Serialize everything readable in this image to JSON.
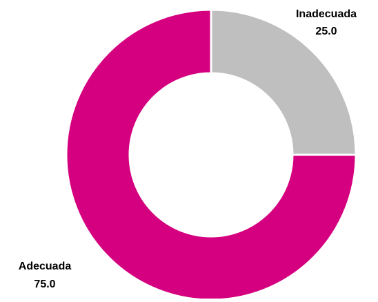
{
  "chart_data": {
    "type": "pie",
    "donut": true,
    "title": "",
    "slices": [
      {
        "label": "Inadecuada",
        "value": 25.0,
        "value_label": "25.0",
        "color": "#BFBFBF"
      },
      {
        "label": "Adecuada",
        "value": 75.0,
        "value_label": "75.0",
        "color": "#D5007F"
      }
    ],
    "start_angle": "12 o'clock",
    "direction": "clockwise",
    "slice_border_color": "#FFFFFF",
    "legend": "none"
  }
}
